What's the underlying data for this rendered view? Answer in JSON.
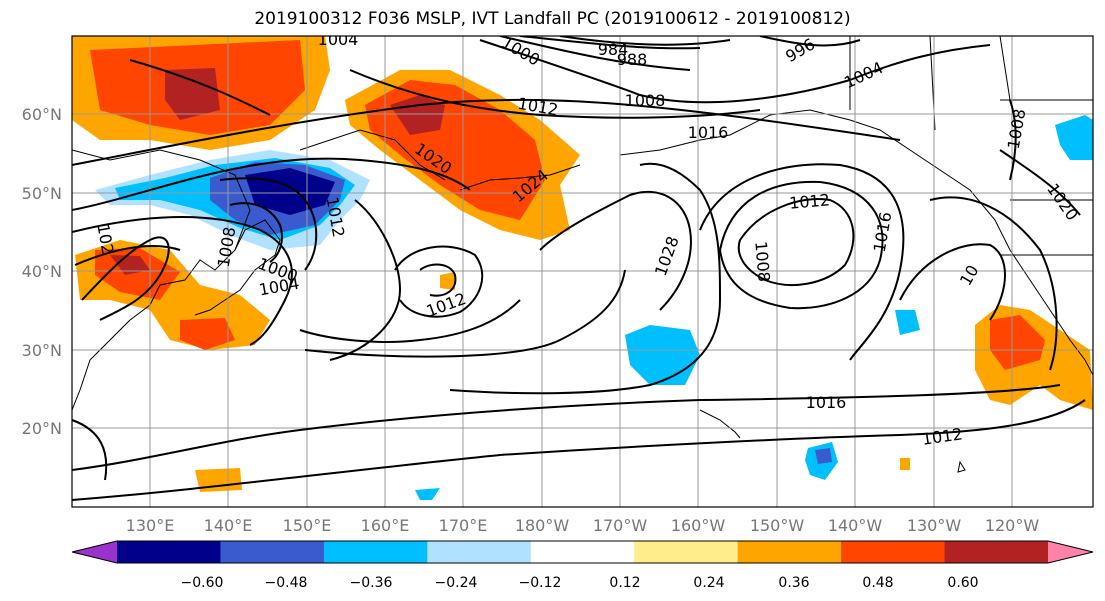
{
  "title": "2019100312 F036 MSLP, IVT Landfall PC (2019100612 - 2019100812)",
  "map": {
    "lat_labels": [
      "60°N",
      "50°N",
      "40°N",
      "30°N",
      "20°N"
    ],
    "lon_labels": [
      "130°E",
      "140°E",
      "150°E",
      "160°E",
      "170°E",
      "180°W",
      "170°W",
      "160°W",
      "150°W",
      "140°W",
      "130°W",
      "120°W"
    ],
    "isobar_labels": [
      "1004",
      "1000",
      "984",
      "988",
      "996",
      "1004",
      "1012",
      "1008",
      "1016",
      "1020",
      "1024",
      "1008",
      "1012",
      "1000",
      "1004",
      "102",
      "1012",
      "1028",
      "1012",
      "1008",
      "1016",
      "1008",
      "1020",
      "10",
      "1016",
      "1012"
    ]
  },
  "colorbar": {
    "ticks": [
      "−0.60",
      "−0.48",
      "−0.36",
      "−0.24",
      "−0.12",
      "0.12",
      "0.24",
      "0.36",
      "0.48",
      "0.60"
    ],
    "colors": [
      "#9a32cd",
      "#00008b",
      "#3a5bcd",
      "#00bfff",
      "#b0e2ff",
      "#ffffff",
      "#ffec8b",
      "#ffa500",
      "#ff4500",
      "#b22222",
      "#ff82ab"
    ]
  }
}
